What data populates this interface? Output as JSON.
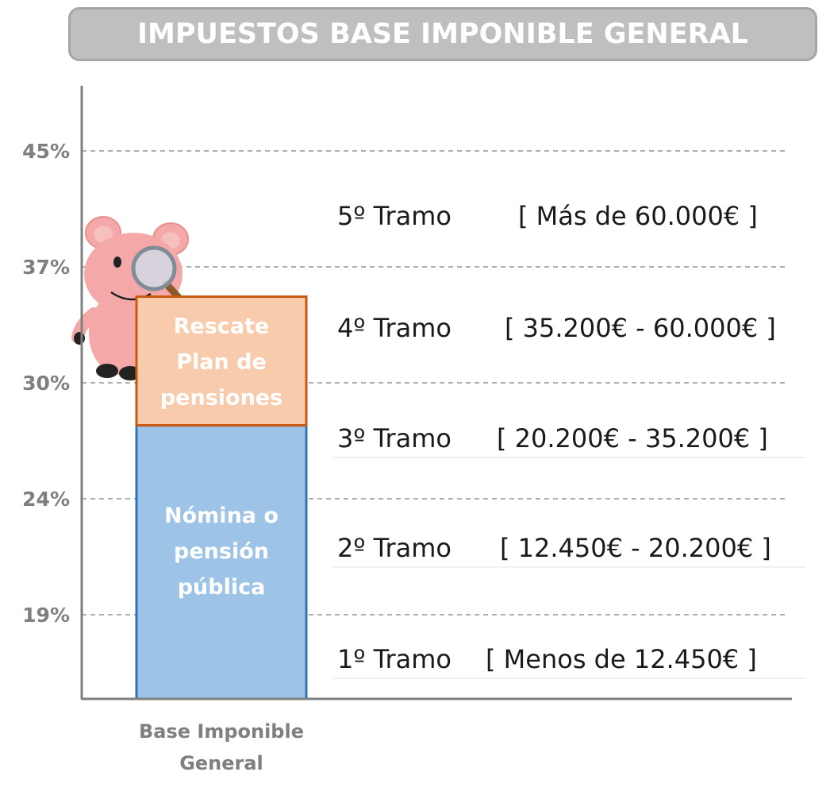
{
  "title": "IMPUESTOS BASE IMPONIBLE GENERAL",
  "chart_data": {
    "type": "bar",
    "stacked": true,
    "title": "IMPUESTOS BASE IMPONIBLE GENERAL",
    "category": [
      "Base Imponible",
      "General"
    ],
    "y_ticks": [
      "19%",
      "24%",
      "30%",
      "37%",
      "45%"
    ],
    "ylim": [
      14,
      48
    ],
    "grid": true,
    "segments": [
      {
        "name_lines": [
          "Nómina o",
          "pensión",
          "pública"
        ],
        "from": 14,
        "to": 27.8,
        "color": "#9dc3e6",
        "border": "#2e75b6"
      },
      {
        "name_lines": [
          "Rescate",
          "Plan de",
          "pensiones"
        ],
        "from": 27.8,
        "to": 35.2,
        "color": "#f8cbad",
        "border": "#c55a11"
      }
    ],
    "brackets": [
      {
        "tramo": "1º Tramo",
        "range": "[ Menos de 12.450€ ]",
        "rate": "19%"
      },
      {
        "tramo": "2º Tramo",
        "range": "[ 12.450€ - 20.200€ ]",
        "rate": "24%"
      },
      {
        "tramo": "3º Tramo",
        "range": "[ 20.200€ - 35.200€ ]",
        "rate": "30%"
      },
      {
        "tramo": "4º Tramo",
        "range": "[ 35.200€ - 60.000€ ]",
        "rate": "37%"
      },
      {
        "tramo": "5º Tramo",
        "range": "[ Más de 60.000€ ]",
        "rate": "45%"
      }
    ]
  },
  "mascot": {
    "icon": "pig-magnifier-icon"
  },
  "colors": {
    "axis": "#7f7f7f",
    "grid": "#7f7f7f",
    "title_bg": "#bfbfbf"
  }
}
